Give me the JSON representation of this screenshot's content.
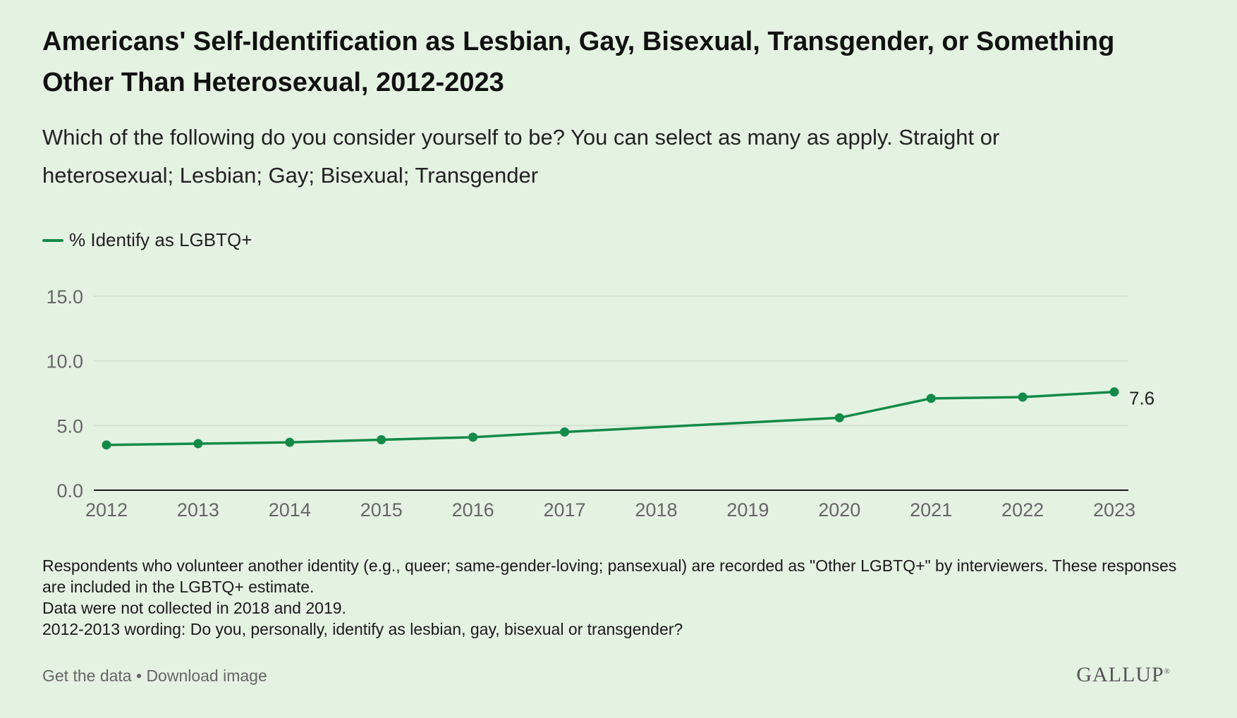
{
  "header": {
    "title": "Americans' Self-Identification as Lesbian, Gay, Bisexual, Transgender, or Something Other Than Heterosexual, 2012-2023",
    "subtitle": "Which of the following do you consider yourself to be? You can select as many as apply. Straight or heterosexual; Lesbian; Gay; Bisexual; Transgender"
  },
  "colors": {
    "background": "#e4f2e2",
    "series": "#138a48",
    "gridline": "#d2e2d0",
    "axis": "#1a1a1a"
  },
  "chart_data": {
    "type": "line",
    "title": "Americans' Self-Identification as Lesbian, Gay, Bisexual, Transgender, or Something Other Than Heterosexual, 2012-2023",
    "xlabel": "",
    "ylabel": "",
    "ylim": [
      0,
      15
    ],
    "yticks": [
      "0.0",
      "5.0",
      "10.0",
      "15.0"
    ],
    "ytick_values": [
      0,
      5,
      10,
      15
    ],
    "categories": [
      "2012",
      "2013",
      "2014",
      "2015",
      "2016",
      "2017",
      "2018",
      "2019",
      "2020",
      "2021",
      "2022",
      "2023"
    ],
    "grid": true,
    "legend_position": "top-left",
    "series": [
      {
        "name": "% Identify as LGBTQ+",
        "x": [
          "2012",
          "2013",
          "2014",
          "2015",
          "2016",
          "2017",
          "2020",
          "2021",
          "2022",
          "2023"
        ],
        "values": [
          3.5,
          3.6,
          3.7,
          3.9,
          4.1,
          4.5,
          5.6,
          7.1,
          7.2,
          7.6
        ]
      }
    ],
    "annotations": [
      {
        "x": "2023",
        "value": 7.6,
        "text": "7.6"
      }
    ]
  },
  "notes": [
    "Respondents who volunteer another identity (e.g., queer; same-gender-loving; pansexual) are recorded as \"Other LGBTQ+\" by interviewers. These responses are included in the LGBTQ+ estimate.",
    "Data were not collected in 2018 and 2019.",
    "2012-2013 wording: Do you, personally, identify as lesbian, gay, bisexual or transgender?"
  ],
  "footer": {
    "get_data": "Get the data",
    "separator": "•",
    "download": "Download image",
    "brand": "GALLUP",
    "brand_mark": "®"
  }
}
